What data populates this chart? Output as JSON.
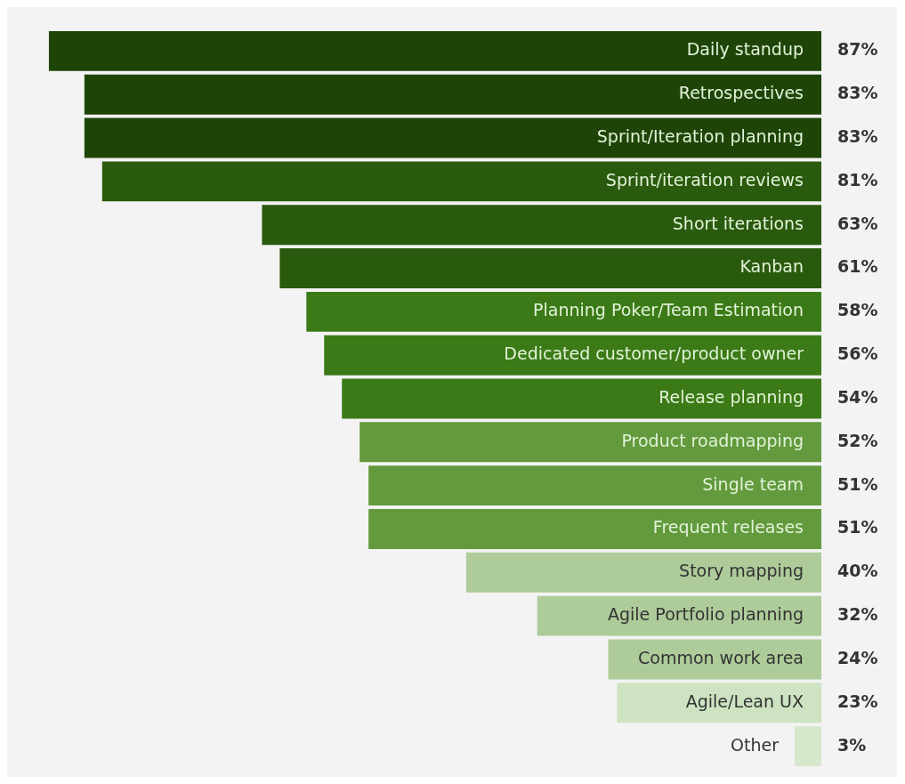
{
  "chart_data": {
    "type": "bar",
    "orientation": "horizontal",
    "categories": [
      "Daily standup",
      "Retrospectives",
      "Sprint/Iteration planning",
      "Sprint/iteration reviews",
      "Short iterations",
      "Kanban",
      "Planning Poker/Team Estimation",
      "Dedicated customer/product owner",
      "Release planning",
      "Product roadmapping",
      "Single team",
      "Frequent releases",
      "Story mapping",
      "Agile Portfolio planning",
      "Common work area",
      "Agile/Lean UX",
      "Other"
    ],
    "values": [
      87,
      83,
      83,
      81,
      63,
      61,
      58,
      56,
      54,
      52,
      51,
      51,
      40,
      32,
      24,
      23,
      3
    ],
    "colors": [
      "#1e4507",
      "#1e4507",
      "#1e4507",
      "#2a5a0e",
      "#2a5a0e",
      "#2a5a0e",
      "#3b7a17",
      "#3b7a17",
      "#3b7a17",
      "#629a3d",
      "#629a3d",
      "#629a3d",
      "#aecb9a",
      "#aecb9a",
      "#aecb9a",
      "#cde3c1",
      "#d6e8cc"
    ],
    "value_labels": [
      "87%",
      "83%",
      "83%",
      "81%",
      "63%",
      "61%",
      "58%",
      "56%",
      "54%",
      "52%",
      "51%",
      "51%",
      "40%",
      "32%",
      "24%",
      "23%",
      "3%"
    ],
    "legend": false
  }
}
